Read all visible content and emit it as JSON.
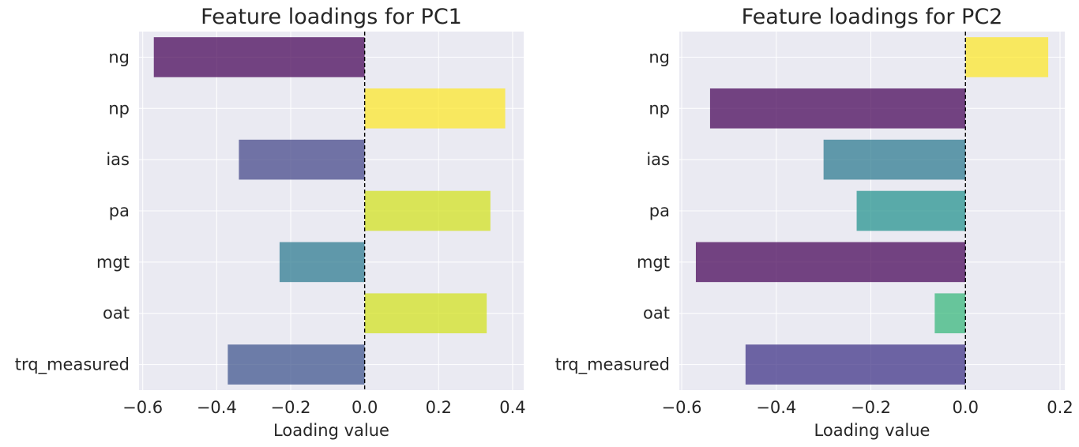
{
  "chart_data": [
    {
      "type": "bar",
      "orientation": "horizontal",
      "title": "Feature loadings for PC1",
      "xlabel": "Loading value",
      "ylabel": "",
      "categories": [
        "ng",
        "np",
        "ias",
        "pa",
        "mgt",
        "oat",
        "trq_measured"
      ],
      "values": [
        -0.57,
        0.38,
        -0.34,
        0.34,
        -0.23,
        0.33,
        -0.37
      ],
      "colors": [
        "#440154",
        "#fde725",
        "#414487",
        "#d2e21b",
        "#2a788e",
        "#d2e21b",
        "#3b528b"
      ],
      "xlim": [
        -0.61,
        0.43
      ],
      "xticks": [
        -0.6,
        -0.4,
        -0.2,
        0.0,
        0.2,
        0.4
      ],
      "xtick_labels": [
        "−0.6",
        "−0.4",
        "−0.2",
        "0.0",
        "0.2",
        "0.4"
      ],
      "reference_line": 0,
      "grid": true
    },
    {
      "type": "bar",
      "orientation": "horizontal",
      "title": "Feature loadings for PC2",
      "xlabel": "Loading value",
      "ylabel": "",
      "categories": [
        "ng",
        "np",
        "ias",
        "pa",
        "mgt",
        "oat",
        "trq_measured"
      ],
      "values": [
        0.175,
        -0.54,
        -0.3,
        -0.23,
        -0.57,
        -0.065,
        -0.465
      ],
      "colors": [
        "#fde725",
        "#440154",
        "#2a788e",
        "#21918c",
        "#440154",
        "#35b779",
        "#3b2f84"
      ],
      "xlim": [
        -0.605,
        0.21
      ],
      "xticks": [
        -0.6,
        -0.4,
        -0.2,
        0.0,
        0.2
      ],
      "xtick_labels": [
        "−0.6",
        "−0.4",
        "−0.2",
        "0.0",
        "0.2"
      ],
      "reference_line": 0,
      "grid": true
    }
  ]
}
